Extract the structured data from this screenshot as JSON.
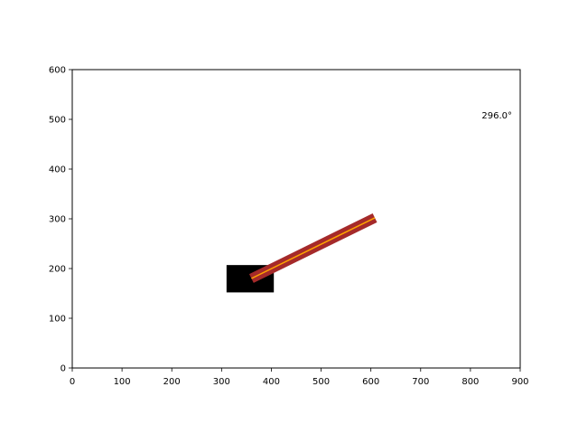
{
  "angle_readout": "296.0°",
  "axes": {
    "x_range": [
      0,
      900
    ],
    "y_range": [
      0,
      600
    ],
    "x_ticks": [
      "0",
      "100",
      "200",
      "300",
      "400",
      "500",
      "600",
      "700",
      "800",
      "900"
    ],
    "y_ticks": [
      "0",
      "100",
      "200",
      "300",
      "400",
      "500",
      "600"
    ]
  },
  "scene": {
    "base_block": {
      "x_min": 310,
      "x_max": 405,
      "y_min": 152,
      "y_max": 207,
      "color": "#000000"
    },
    "arm": {
      "start": [
        360,
        180
      ],
      "end": [
        608,
        302
      ],
      "outer_color": "#a52a2a",
      "inner_color": "#ffa500"
    }
  },
  "colors": {
    "axes": "#000000",
    "background": "#ffffff"
  }
}
